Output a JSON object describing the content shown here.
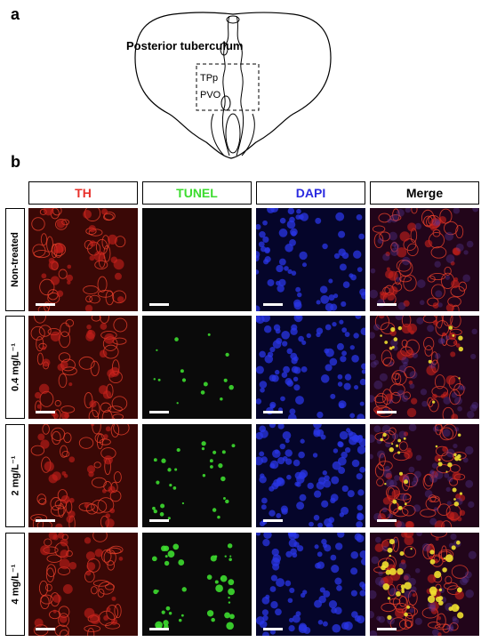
{
  "figure": {
    "panel_a": {
      "letter": "a",
      "region_label": "Posterior tuberculum",
      "box_labels": [
        "TPp",
        "PVO"
      ]
    },
    "panel_b": {
      "letter": "b",
      "columns": [
        {
          "label": "TH",
          "color": "#e8302a"
        },
        {
          "label": "TUNEL",
          "color": "#3ddc2f"
        },
        {
          "label": "DAPI",
          "color": "#2a2ae0"
        },
        {
          "label": "Merge",
          "color": "#000000"
        }
      ],
      "rows": [
        {
          "label": "Non-treated"
        },
        {
          "label": "0.4 mg/L⁻¹"
        },
        {
          "label": "2 mg/L⁻¹"
        },
        {
          "label": "4 mg/L⁻¹"
        }
      ]
    }
  }
}
